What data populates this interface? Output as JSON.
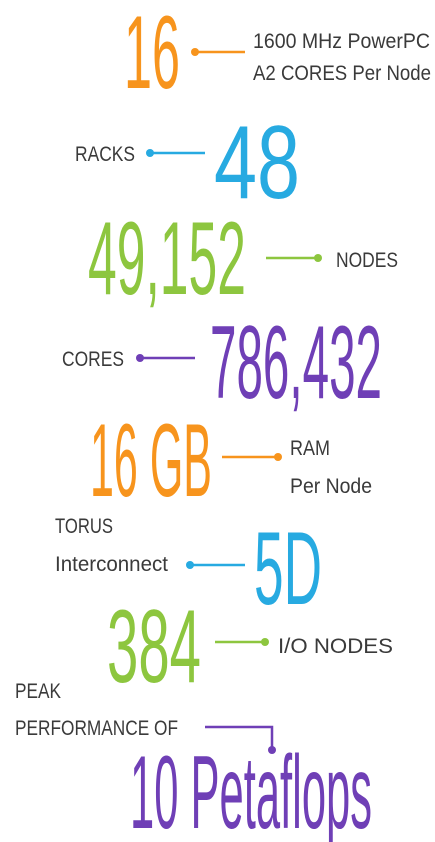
{
  "items": [
    {
      "figure": "16",
      "label": [
        "1600 MHz PowerPC",
        "A2 CORES Per Node"
      ]
    },
    {
      "figure": "48",
      "label": [
        "RACKS"
      ]
    },
    {
      "figure": "49,152",
      "label": [
        "NODES"
      ]
    },
    {
      "figure": "786,432",
      "label": [
        "CORES"
      ]
    },
    {
      "figure": "16 GB",
      "label": [
        "RAM",
        "Per Node"
      ]
    },
    {
      "figure": "5D",
      "label": [
        "TORUS",
        "Interconnect"
      ]
    },
    {
      "figure": "384",
      "label": [
        "I/O NODES"
      ]
    },
    {
      "figure": "10 Petaflops",
      "label": [
        "PEAK",
        "PERFORMANCE OF"
      ]
    }
  ]
}
